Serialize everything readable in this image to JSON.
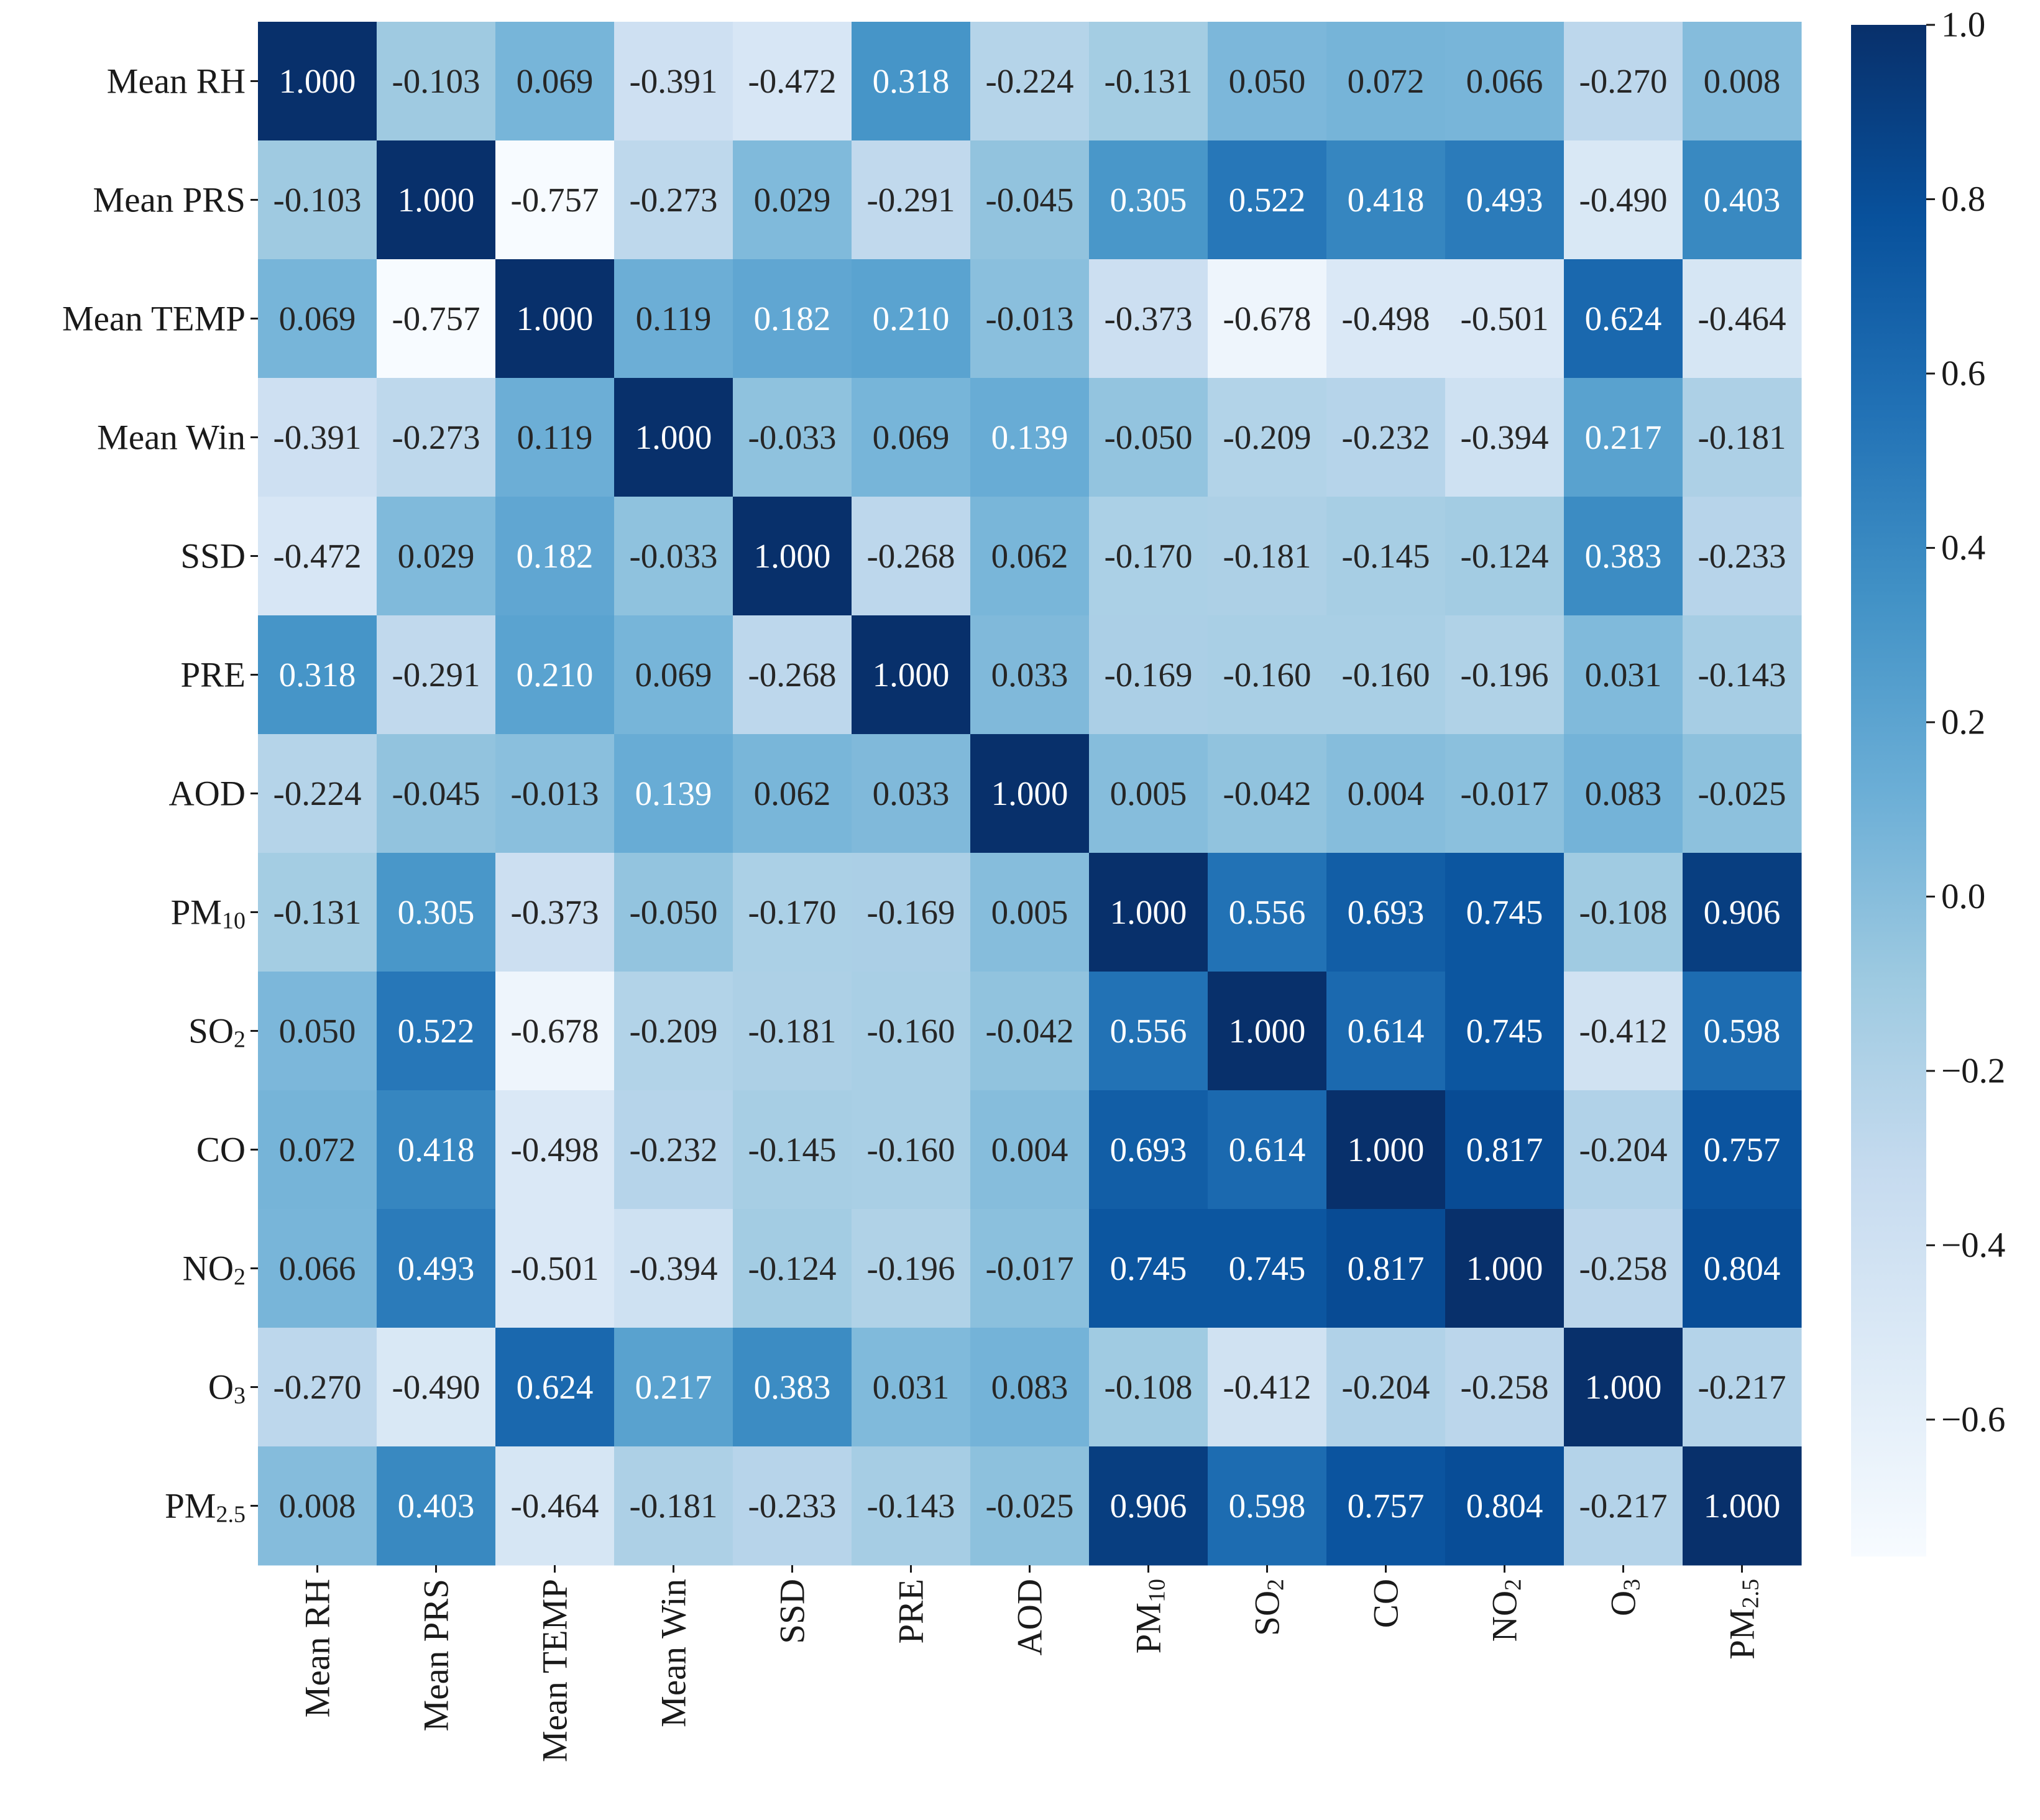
{
  "chart_data": {
    "type": "heatmap",
    "title": "",
    "xlabel": "",
    "ylabel": "",
    "labels": [
      {
        "base": "Mean RH",
        "sub": ""
      },
      {
        "base": "Mean PRS",
        "sub": ""
      },
      {
        "base": "Mean TEMP",
        "sub": ""
      },
      {
        "base": "Mean Win",
        "sub": ""
      },
      {
        "base": "SSD",
        "sub": ""
      },
      {
        "base": "PRE",
        "sub": ""
      },
      {
        "base": "AOD",
        "sub": ""
      },
      {
        "base": "PM",
        "sub": "10"
      },
      {
        "base": "SO",
        "sub": "2"
      },
      {
        "base": "CO",
        "sub": ""
      },
      {
        "base": "NO",
        "sub": "2"
      },
      {
        "base": "O",
        "sub": "3"
      },
      {
        "base": "PM",
        "sub": "2.5"
      }
    ],
    "matrix": [
      [
        1.0,
        -0.103,
        0.069,
        -0.391,
        -0.472,
        0.318,
        -0.224,
        -0.131,
        0.05,
        0.072,
        0.066,
        -0.27,
        0.008
      ],
      [
        -0.103,
        1.0,
        -0.757,
        -0.273,
        0.029,
        -0.291,
        -0.045,
        0.305,
        0.522,
        0.418,
        0.493,
        -0.49,
        0.403
      ],
      [
        0.069,
        -0.757,
        1.0,
        0.119,
        0.182,
        0.21,
        -0.013,
        -0.373,
        -0.678,
        -0.498,
        -0.501,
        0.624,
        -0.464
      ],
      [
        -0.391,
        -0.273,
        0.119,
        1.0,
        -0.033,
        0.069,
        0.139,
        -0.05,
        -0.209,
        -0.232,
        -0.394,
        0.217,
        -0.181
      ],
      [
        -0.472,
        0.029,
        0.182,
        -0.033,
        1.0,
        -0.268,
        0.062,
        -0.17,
        -0.181,
        -0.145,
        -0.124,
        0.383,
        -0.233
      ],
      [
        0.318,
        -0.291,
        0.21,
        0.069,
        -0.268,
        1.0,
        0.033,
        -0.169,
        -0.16,
        -0.16,
        -0.196,
        0.031,
        -0.143
      ],
      [
        -0.224,
        -0.045,
        -0.013,
        0.139,
        0.062,
        0.033,
        1.0,
        0.005,
        -0.042,
        0.004,
        -0.017,
        0.083,
        -0.025
      ],
      [
        -0.131,
        0.305,
        -0.373,
        -0.05,
        -0.17,
        -0.169,
        0.005,
        1.0,
        0.556,
        0.693,
        0.745,
        -0.108,
        0.906
      ],
      [
        0.05,
        0.522,
        -0.678,
        -0.209,
        -0.181,
        -0.16,
        -0.042,
        0.556,
        1.0,
        0.614,
        0.745,
        -0.412,
        0.598
      ],
      [
        0.072,
        0.418,
        -0.498,
        -0.232,
        -0.145,
        -0.16,
        0.004,
        0.693,
        0.614,
        1.0,
        0.817,
        -0.204,
        0.757
      ],
      [
        0.066,
        0.493,
        -0.501,
        -0.394,
        -0.124,
        -0.196,
        -0.017,
        0.745,
        0.745,
        0.817,
        1.0,
        -0.258,
        0.804
      ],
      [
        -0.27,
        -0.49,
        0.624,
        0.217,
        0.383,
        0.031,
        0.083,
        -0.108,
        -0.412,
        -0.204,
        -0.258,
        1.0,
        -0.217
      ],
      [
        0.008,
        0.403,
        -0.464,
        -0.181,
        -0.233,
        -0.143,
        -0.025,
        0.906,
        0.598,
        0.757,
        0.804,
        -0.217,
        1.0
      ]
    ],
    "value_format_decimals": 3,
    "colormap": "Blues",
    "colormap_stops": [
      "#f7fbff",
      "#deebf7",
      "#c6dbef",
      "#9ecae1",
      "#6baed6",
      "#4292c6",
      "#2171b5",
      "#08519c",
      "#08306b"
    ],
    "colormap_name": "YlGnBu-like blue",
    "vmin": -0.757,
    "vmax": 1.0,
    "colorbar": {
      "ticks": [
        1.0,
        0.8,
        0.6,
        0.4,
        0.2,
        0.0,
        -0.2,
        -0.4,
        -0.6
      ],
      "tick_labels": [
        "1.0",
        "0.8",
        "0.6",
        "0.4",
        "0.2",
        "0.0",
        "−0.2",
        "−0.4",
        "−0.6"
      ]
    },
    "text_color_light": "#ffffff",
    "text_color_dark": "#262626"
  }
}
